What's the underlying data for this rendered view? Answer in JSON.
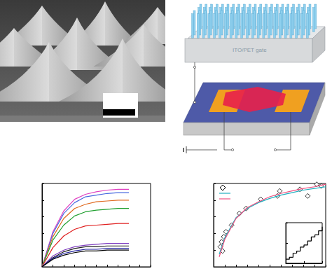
{
  "figure": {
    "schematic": {
      "label": "ITO/PET gate"
    }
  },
  "chart_data": [
    {
      "type": "line",
      "tick_labels": false,
      "grid": false,
      "xlim": [
        0,
        10
      ],
      "xticks": [
        0,
        1,
        2,
        3,
        4,
        5,
        6,
        7,
        8,
        9,
        10
      ],
      "ylim": [
        0,
        10
      ],
      "yticks": [
        0,
        2,
        4,
        6,
        8,
        10
      ],
      "x": [
        0,
        1,
        2,
        3,
        4,
        5,
        6,
        7,
        8
      ],
      "series": [
        {
          "color": "#e040c0",
          "values": [
            0,
            4.2,
            6.7,
            8.1,
            8.7,
            9.0,
            9.2,
            9.3,
            9.3
          ]
        },
        {
          "color": "#4a6ae0",
          "values": [
            0,
            4.0,
            6.4,
            7.7,
            8.4,
            8.6,
            8.8,
            8.9,
            8.9
          ]
        },
        {
          "color": "#e06a20",
          "values": [
            0,
            3.6,
            5.8,
            7.0,
            7.5,
            7.8,
            7.9,
            8.0,
            8.0
          ]
        },
        {
          "color": "#20a030",
          "values": [
            0,
            3.2,
            5.0,
            6.1,
            6.6,
            6.8,
            6.9,
            7.0,
            7.0
          ]
        },
        {
          "color": "#e02020",
          "values": [
            0,
            2.3,
            3.7,
            4.5,
            4.9,
            5.0,
            5.1,
            5.2,
            5.2
          ]
        },
        {
          "color": "#8040c0",
          "values": [
            0,
            1.3,
            2.0,
            2.4,
            2.6,
            2.7,
            2.8,
            2.8,
            2.8
          ]
        },
        {
          "color": "#202020",
          "values": [
            0,
            1.1,
            1.8,
            2.2,
            2.4,
            2.4,
            2.5,
            2.5,
            2.5
          ]
        },
        {
          "color": "#2020a0",
          "values": [
            0,
            1.0,
            1.6,
            1.9,
            2.1,
            2.1,
            2.2,
            2.2,
            2.2
          ]
        },
        {
          "color": "#000000",
          "values": [
            0,
            0.9,
            1.4,
            1.7,
            1.9,
            1.9,
            2.0,
            2.0,
            2.0
          ]
        }
      ]
    },
    {
      "type": "scatter",
      "tick_labels": false,
      "grid": false,
      "legend": "top-left",
      "xlim": [
        0,
        10
      ],
      "xticks": [
        0,
        1,
        2,
        3,
        4,
        5,
        6,
        7,
        8,
        9,
        10
      ],
      "ylim": [
        0,
        10
      ],
      "yticks": [
        0,
        2,
        4,
        6,
        8,
        10
      ],
      "series": [
        {
          "type": "scatter",
          "marker": "diamond",
          "color": "#000000",
          "x": [
            0.6,
            0.7,
            0.8,
            0.9,
            1.1,
            1.6,
            2.3,
            2.9,
            4.2,
            5.7,
            5.9,
            7.7,
            8.4,
            9.2,
            9.6
          ],
          "values": [
            2.4,
            3.0,
            1.9,
            3.6,
            4.2,
            5.0,
            6.4,
            7.0,
            8.1,
            8.5,
            9.1,
            9.3,
            8.5,
            9.9,
            9.7
          ]
        },
        {
          "type": "line",
          "marker": "none",
          "color": "#20b0c0",
          "x": [
            0.5,
            1,
            2,
            3,
            4,
            5,
            6,
            7,
            8,
            9,
            10
          ],
          "values": [
            1.5,
            3.5,
            5.9,
            7.0,
            7.7,
            8.2,
            8.6,
            8.9,
            9.2,
            9.4,
            9.6
          ]
        },
        {
          "type": "line",
          "marker": "none",
          "color": "#f05080",
          "x": [
            0.5,
            1,
            2,
            3,
            4,
            5,
            6,
            7,
            8,
            9,
            10
          ],
          "values": [
            1.2,
            3.3,
            5.8,
            7.1,
            7.8,
            8.4,
            8.8,
            9.1,
            9.4,
            9.6,
            9.9
          ]
        }
      ]
    },
    {
      "type": "line",
      "tick_labels": false,
      "grid": false,
      "xlim": [
        0,
        10
      ],
      "xticks": [
        0,
        5,
        10
      ],
      "ylim": [
        0,
        10
      ],
      "yticks": [
        0,
        5,
        10
      ],
      "series": [
        {
          "type": "line",
          "marker": "none",
          "line_style": "step",
          "color": "#000000",
          "x": [
            0,
            1,
            2,
            3,
            4,
            5,
            6,
            7,
            8,
            9,
            10
          ],
          "values": [
            1,
            1.5,
            2.5,
            3,
            4,
            4.5,
            5.5,
            6.5,
            7,
            8,
            9
          ]
        }
      ]
    }
  ]
}
